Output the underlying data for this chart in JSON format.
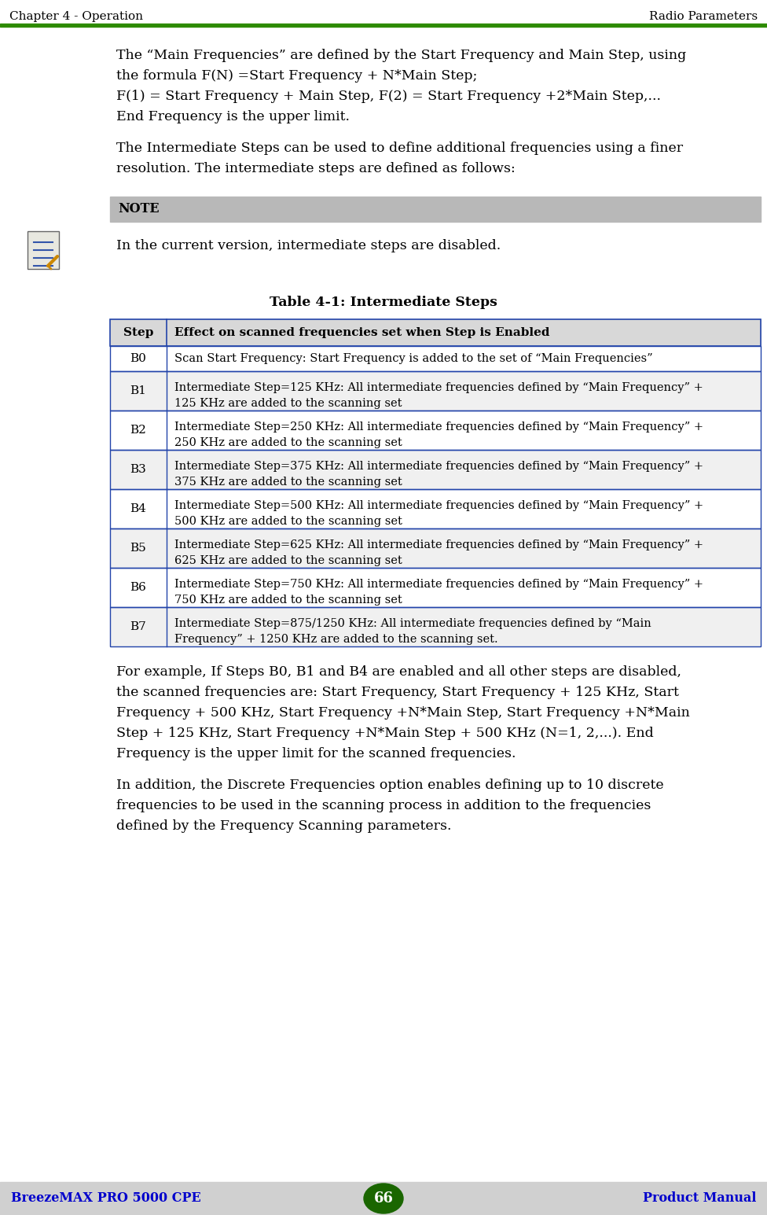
{
  "header_left": "Chapter 4 - Operation",
  "header_right": "Radio Parameters",
  "header_line_color": "#2e8b00",
  "footer_left": "BreezeMAX PRO 5000 CPE",
  "footer_right": "Product Manual",
  "footer_page": "66",
  "footer_bg": "#d0d0d0",
  "footer_text_color": "#0000cc",
  "footer_circle_color": "#1a6600",
  "body_bg": "#ffffff",
  "para1_lines": [
    "The “Main Frequencies” are defined by the Start Frequency and Main Step, using",
    "the formula F(N) =Start Frequency + N*Main Step;",
    "F(1) = Start Frequency + Main Step, F(2) = Start Frequency +2*Main Step,...",
    "End Frequency is the upper limit."
  ],
  "para2_lines": [
    "The Intermediate Steps can be used to define additional frequencies using a finer",
    "resolution. The intermediate steps are defined as follows:"
  ],
  "note_bg": "#b8b8b8",
  "note_label": "NOTE",
  "note_text": "In the current version, intermediate steps are disabled.",
  "table_title": "Table 4-1: Intermediate Steps",
  "table_header_bg": "#505050",
  "table_header_text_color": "#ffffff",
  "table_border_color": "#2244aa",
  "table_col1_header": "Step",
  "table_col2_header": "Effect on scanned frequencies set when Step is Enabled",
  "table_row_bg_even": "#ffffff",
  "table_row_bg_odd": "#f0f0f0",
  "table_rows": [
    [
      "B0",
      "Scan Start Frequency: Start Frequency is added to the set of “Main Frequencies”"
    ],
    [
      "B1",
      "Intermediate Step=125 KHz: All intermediate frequencies defined by “Main Frequency” +\n125 KHz are added to the scanning set"
    ],
    [
      "B2",
      "Intermediate Step=250 KHz: All intermediate frequencies defined by “Main Frequency” +\n250 KHz are added to the scanning set"
    ],
    [
      "B3",
      "Intermediate Step=375 KHz: All intermediate frequencies defined by “Main Frequency” +\n375 KHz are added to the scanning set"
    ],
    [
      "B4",
      "Intermediate Step=500 KHz: All intermediate frequencies defined by “Main Frequency” +\n500 KHz are added to the scanning set"
    ],
    [
      "B5",
      "Intermediate Step=625 KHz: All intermediate frequencies defined by “Main Frequency” +\n625 KHz are added to the scanning set"
    ],
    [
      "B6",
      "Intermediate Step=750 KHz: All intermediate frequencies defined by “Main Frequency” +\n750 KHz are added to the scanning set"
    ],
    [
      "B7",
      "Intermediate Step=875/1250 KHz: All intermediate frequencies defined by “Main\nFrequency” + 1250 KHz are added to the scanning set."
    ]
  ],
  "para3_lines": [
    "For example, If Steps B0, B1 and B4 are enabled and all other steps are disabled,",
    "the scanned frequencies are: Start Frequency, Start Frequency + 125 KHz, Start",
    "Frequency + 500 KHz, Start Frequency +N*Main Step, Start Frequency +N*Main",
    "Step + 125 KHz, Start Frequency +N*Main Step + 500 KHz (N=1, 2,...). End",
    "Frequency is the upper limit for the scanned frequencies."
  ],
  "para4_lines": [
    "In addition, the Discrete Frequencies option enables defining up to 10 discrete",
    "frequencies to be used in the scanning process in addition to the frequencies",
    "defined by the Frequency Scanning parameters."
  ],
  "font_family": "DejaVu Serif",
  "body_text_size": 12.5,
  "header_text_size": 11.0,
  "table_text_size": 11.0
}
